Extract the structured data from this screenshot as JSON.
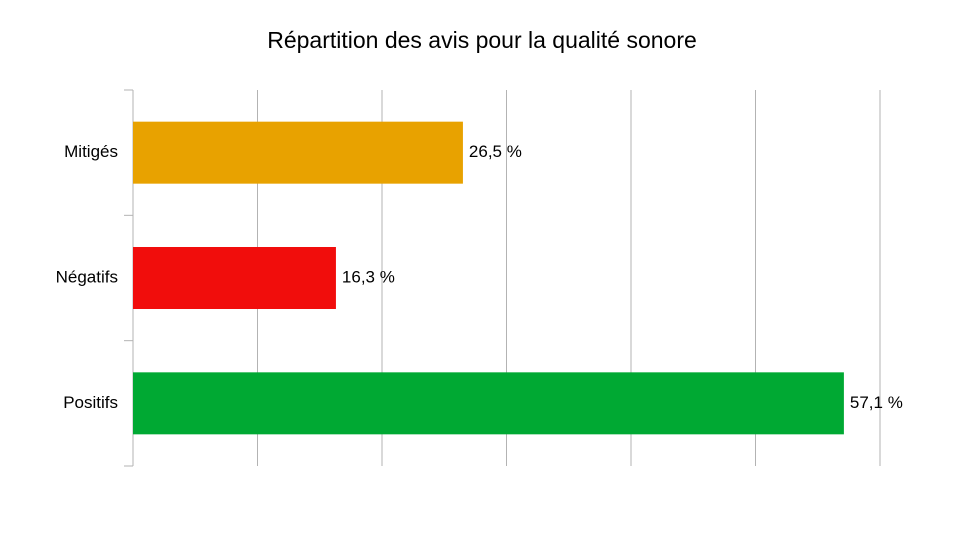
{
  "chart_data": {
    "type": "hbar",
    "title": "Répartition des avis pour la qualité sonore",
    "categories": [
      "Mitigés",
      "Négatifs",
      "Positifs"
    ],
    "values": [
      26.5,
      16.3,
      57.1
    ],
    "value_labels": [
      "26,5 %",
      "16,3 %",
      "57,1 %"
    ],
    "colors": [
      "#e8a200",
      "#f10d0c",
      "#00a933"
    ],
    "xlim": [
      0,
      60
    ],
    "xticks": [
      0,
      10,
      20,
      30,
      40,
      50,
      60
    ],
    "grid": true
  }
}
